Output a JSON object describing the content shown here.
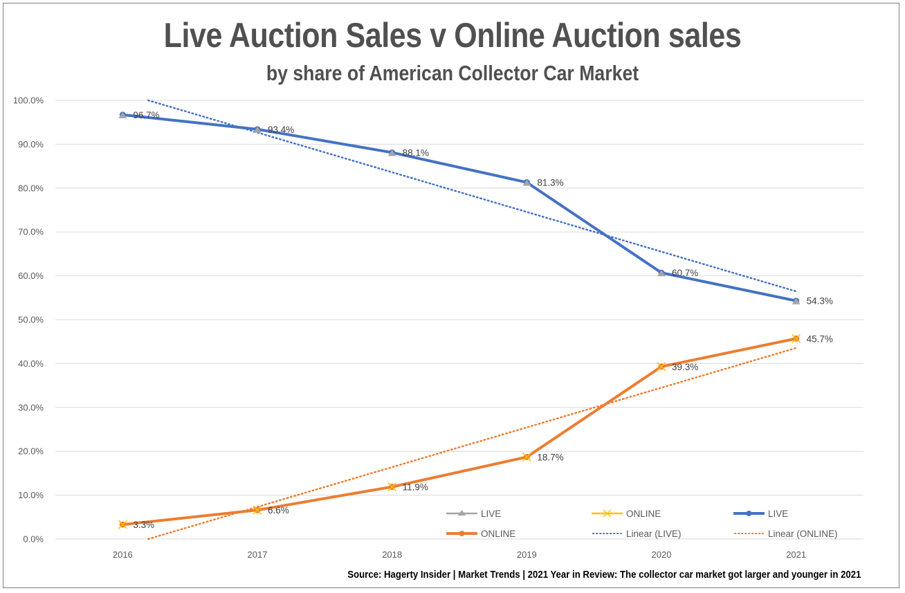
{
  "chart_data": {
    "type": "line",
    "title": "Live Auction Sales v Online Auction sales",
    "subtitle": "by share of American Collector Car Market",
    "xlabel": "",
    "ylabel": "",
    "categories": [
      "2016",
      "2017",
      "2018",
      "2019",
      "2020",
      "2021"
    ],
    "ylim": [
      0,
      100
    ],
    "yticks": [
      0,
      10,
      20,
      30,
      40,
      50,
      60,
      70,
      80,
      90,
      100
    ],
    "ytick_labels": [
      "0.0%",
      "10.0%",
      "20.0%",
      "30.0%",
      "40.0%",
      "50.0%",
      "60.0%",
      "70.0%",
      "80.0%",
      "90.0%",
      "100.0%"
    ],
    "grid": true,
    "legend_placement": "bottom-right",
    "series": [
      {
        "name": "LIVE",
        "role": "marker-triangle",
        "color": "#A5A5A5",
        "values": [
          96.7,
          93.4,
          88.1,
          81.3,
          60.7,
          54.3
        ]
      },
      {
        "name": "ONLINE",
        "role": "marker-x",
        "color": "#FFC000",
        "values": [
          3.3,
          6.6,
          11.9,
          18.7,
          39.3,
          45.7
        ]
      },
      {
        "name": "LIVE",
        "role": "line",
        "color": "#4472C4",
        "values": [
          96.7,
          93.4,
          88.1,
          81.3,
          60.7,
          54.3
        ],
        "labels": [
          "96.7%",
          "93.4%",
          "88.1%",
          "81.3%",
          "60.7%",
          "54.3%"
        ]
      },
      {
        "name": "ONLINE",
        "role": "line",
        "color": "#ED7D31",
        "values": [
          3.3,
          6.6,
          11.9,
          18.7,
          39.3,
          45.7
        ],
        "labels": [
          "3.3%",
          "6.6%",
          "11.9%",
          "18.7%",
          "39.3%",
          "45.7%"
        ]
      }
    ],
    "trendlines": [
      {
        "name": "Linear (LIVE)",
        "color": "#4472C4",
        "of": "LIVE",
        "type": "linear"
      },
      {
        "name": "Linear (ONLINE)",
        "color": "#ED7D31",
        "of": "ONLINE",
        "type": "linear"
      }
    ],
    "legend": [
      {
        "label": "LIVE",
        "kind": "triangle",
        "color": "#A5A5A5"
      },
      {
        "label": "ONLINE",
        "kind": "x",
        "color": "#FFC000"
      },
      {
        "label": "LIVE",
        "kind": "line-dot",
        "color": "#4472C4"
      },
      {
        "label": "ONLINE",
        "kind": "line-dot",
        "color": "#ED7D31"
      },
      {
        "label": "Linear (LIVE)",
        "kind": "dotted",
        "color": "#4472C4"
      },
      {
        "label": "Linear (ONLINE)",
        "kind": "dotted",
        "color": "#ED7D31"
      }
    ],
    "source": "Source: Hagerty Insider | Market Trends | 2021 Year in Review: The collector car market got larger and younger in 2021"
  },
  "colors": {
    "gridline": "#D9D9D9",
    "axis_text": "#595959",
    "title_text": "#505050"
  }
}
